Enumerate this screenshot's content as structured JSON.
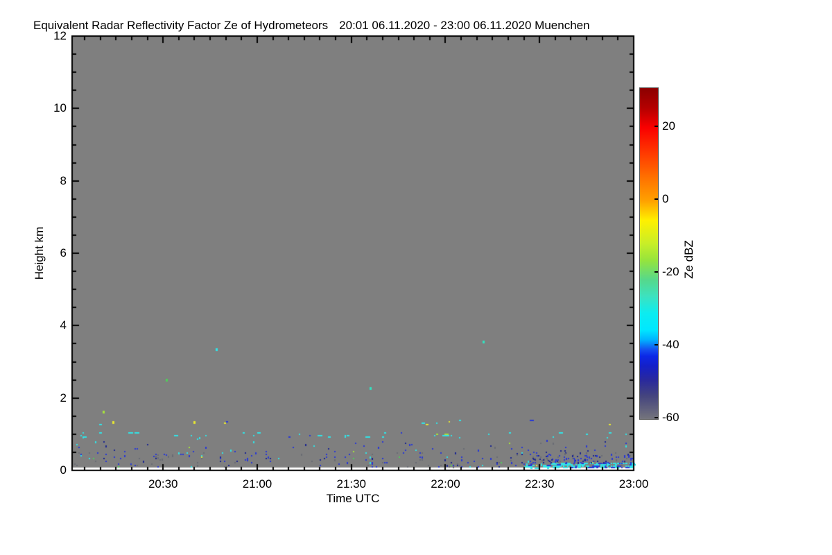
{
  "chart_data": {
    "type": "heatmap",
    "title": "Equivalent Radar Reflectivity Factor Ze of Hydrometeors",
    "period": "20:01 06.11.2020 - 23:00 06.11.2020 Muenchen",
    "xlabel": "Time UTC",
    "ylabel": "Height km",
    "time_start": "20:01",
    "time_end": "23:00",
    "x_ticks": [
      "20:30",
      "21:00",
      "21:30",
      "22:00",
      "22:30",
      "23:00"
    ],
    "x_minor_step_min": 5,
    "y_ticks": [
      0,
      2,
      4,
      6,
      8,
      10,
      12
    ],
    "y_minor_step": 0.5,
    "ylim": [
      0,
      12
    ],
    "no_data_below_km": 0.08,
    "background_color": "#7F7F7F",
    "frame_color": "#000000",
    "palette": {
      "cyan": "#30E4E8",
      "blue": "#2737D6",
      "navy": "#1B2690",
      "darkgray": "#696B73",
      "yellow": "#E6E632",
      "greenyellow": "#A6E23C",
      "green": "#4FCE5A",
      "turquoise": "#32E2C0"
    },
    "colorbar": {
      "label": "Ze dBZ",
      "ticks": [
        20,
        0,
        -20,
        -40,
        -60
      ],
      "value_range": [
        30.7,
        -60.2
      ],
      "stops": [
        [
          "0%",
          "#8B0000"
        ],
        [
          "6%",
          "#B40000"
        ],
        [
          "12%",
          "#FA0000"
        ],
        [
          "20%",
          "#FF3C00"
        ],
        [
          "28%",
          "#FF7800"
        ],
        [
          "34%",
          "#FFA000"
        ],
        [
          "40%",
          "#FFF000"
        ],
        [
          "47%",
          "#C8EE28"
        ],
        [
          "52%",
          "#96E43C"
        ],
        [
          "58%",
          "#55D88C"
        ],
        [
          "63%",
          "#3CE2C0"
        ],
        [
          "68%",
          "#0CECF0"
        ],
        [
          "73%",
          "#00E8FF"
        ],
        [
          "76%",
          "#00B4FF"
        ],
        [
          "79%",
          "#1450F0"
        ],
        [
          "81%",
          "#0C28E6"
        ],
        [
          "84%",
          "#1420C8"
        ],
        [
          "88%",
          "#28289E"
        ],
        [
          "93%",
          "#44447E"
        ],
        [
          "100%",
          "#74747C"
        ]
      ]
    },
    "noise_bands": [
      {
        "name": "cloud-fragments-1km",
        "t": [
          0.0,
          1.0
        ],
        "h": [
          0.93,
          1.05
        ],
        "density": 0.035,
        "shape": "dash",
        "colors": {
          "cyan": 0.85,
          "blue": 0.1,
          "greenyellow": 0.05
        }
      },
      {
        "name": "cloud-fragments-1p3km",
        "t": [
          0.0,
          1.0
        ],
        "h": [
          1.26,
          1.4
        ],
        "density": 0.013,
        "shape": "dash",
        "colors": {
          "cyan": 0.7,
          "yellow": 0.18,
          "blue": 0.12
        }
      },
      {
        "name": "boundary-clutter-low",
        "t": [
          0.0,
          1.0
        ],
        "h": [
          0.1,
          0.5
        ],
        "density": 0.06,
        "shape": "pixel",
        "colors": {
          "blue": 0.45,
          "navy": 0.22,
          "darkgray": 0.2,
          "cyan": 0.08,
          "yellow": 0.03,
          "green": 0.02
        }
      },
      {
        "name": "boundary-clutter-mid",
        "t": [
          0.0,
          1.0
        ],
        "h": [
          0.5,
          0.8
        ],
        "density": 0.02,
        "shape": "pixel",
        "colors": {
          "blue": 0.55,
          "navy": 0.15,
          "darkgray": 0.15,
          "cyan": 0.12,
          "greenyellow": 0.03
        }
      },
      {
        "name": "sparse-gap-layer",
        "t": [
          0.0,
          1.0
        ],
        "h": [
          0.8,
          0.92
        ],
        "density": 0.006,
        "shape": "pixel",
        "colors": {
          "blue": 0.6,
          "cyan": 0.4
        }
      },
      {
        "name": "clutter-clump-2023",
        "t": [
          0.145,
          0.18
        ],
        "h": [
          0.3,
          0.55
        ],
        "density": 0.18,
        "shape": "pixel",
        "colors": {
          "darkgray": 0.45,
          "blue": 0.35,
          "navy": 0.2
        }
      },
      {
        "name": "clutter-clump-2225",
        "t": [
          0.78,
          0.93
        ],
        "h": [
          0.25,
          0.55
        ],
        "density": 0.1,
        "shape": "pixel",
        "colors": {
          "navy": 0.5,
          "darkgray": 0.3,
          "blue": 0.2
        }
      },
      {
        "name": "drizzle-cyan-patches",
        "t": [
          0.805,
          0.855
        ],
        "h": [
          0.08,
          0.2
        ],
        "density": 0.25,
        "shape": "dash",
        "colors": {
          "cyan": 0.75,
          "blue": 0.25
        }
      },
      {
        "name": "drizzle-cyan-band",
        "t": [
          0.855,
          1.0
        ],
        "h": [
          0.08,
          0.22
        ],
        "density": 0.55,
        "shape": "dash",
        "colors": {
          "cyan": 0.8,
          "blue": 0.2
        }
      },
      {
        "name": "drizzle-blue-top",
        "t": [
          0.82,
          1.0
        ],
        "h": [
          0.22,
          0.42
        ],
        "density": 0.22,
        "shape": "pixel",
        "colors": {
          "blue": 0.5,
          "navy": 0.35,
          "darkgray": 0.15
        }
      }
    ],
    "isolated_points": [
      {
        "time": "20:11",
        "height_km": 1.61,
        "color": "greenyellow"
      },
      {
        "time": "20:14",
        "height_km": 1.33,
        "color": "yellow"
      },
      {
        "time": "20:31",
        "height_km": 2.49,
        "color": "green"
      },
      {
        "time": "20:40",
        "height_km": 1.32,
        "color": "yellow"
      },
      {
        "time": "20:47",
        "height_km": 3.33,
        "color": "cyan"
      },
      {
        "time": "21:36",
        "height_km": 2.26,
        "color": "turquoise"
      },
      {
        "time": "22:12",
        "height_km": 3.55,
        "color": "turquoise"
      }
    ]
  }
}
